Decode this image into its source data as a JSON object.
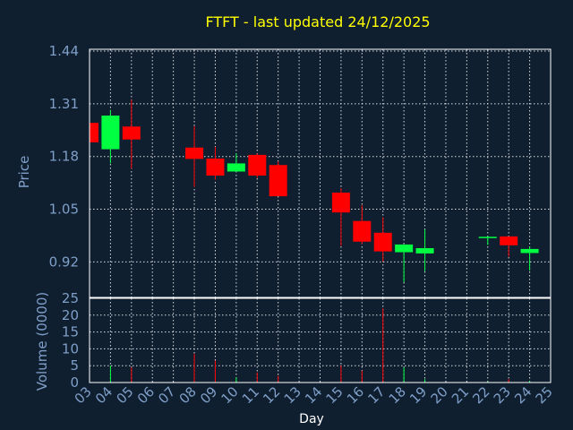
{
  "chart_data": {
    "type": "candlestick",
    "title": "FTFT - last updated 24/12/2025",
    "xlabel": "Day",
    "price_panel": {
      "ylabel": "Price",
      "yticks": [
        "1.44",
        "1.31",
        "1.18",
        "1.05",
        "0.92"
      ],
      "ylim": [
        0.8325,
        1.4445
      ]
    },
    "volume_panel": {
      "ylabel": "Volume (0000)",
      "yticks": [
        "25",
        "20",
        "15",
        "10",
        "5",
        "0"
      ],
      "ylim": [
        0,
        25
      ]
    },
    "x_ticks": [
      "03",
      "04",
      "05",
      "06",
      "07",
      "08",
      "09",
      "10",
      "11",
      "12",
      "13",
      "14",
      "15",
      "16",
      "17",
      "18",
      "19",
      "20",
      "21",
      "22",
      "23",
      "24",
      "25"
    ],
    "candles": [
      {
        "day": "03",
        "open": 1.263,
        "close": 1.215,
        "high": 1.263,
        "low": 1.215,
        "volume": 0.5
      },
      {
        "day": "04",
        "open": 1.198,
        "close": 1.281,
        "high": 1.295,
        "low": 1.163,
        "volume": 5
      },
      {
        "day": "05",
        "open": 1.254,
        "close": 1.222,
        "high": 1.32,
        "low": 1.15,
        "volume": 4.5
      },
      {
        "day": "08",
        "open": 1.202,
        "close": 1.174,
        "high": 1.255,
        "low": 1.105,
        "volume": 8.5
      },
      {
        "day": "09",
        "open": 1.175,
        "close": 1.133,
        "high": 1.204,
        "low": 1.123,
        "volume": 6.5
      },
      {
        "day": "10",
        "open": 1.143,
        "close": 1.163,
        "high": 1.188,
        "low": 1.143,
        "volume": 1.5
      },
      {
        "day": "11",
        "open": 1.184,
        "close": 1.133,
        "high": 1.187,
        "low": 1.127,
        "volume": 3
      },
      {
        "day": "12",
        "open": 1.159,
        "close": 1.082,
        "high": 1.168,
        "low": 1.082,
        "volume": 2
      },
      {
        "day": "15",
        "open": 1.091,
        "close": 1.042,
        "high": 1.102,
        "low": 0.96,
        "volume": 5
      },
      {
        "day": "16",
        "open": 1.021,
        "close": 0.97,
        "high": 1.06,
        "low": 0.964,
        "volume": 3.5
      },
      {
        "day": "17",
        "open": 0.992,
        "close": 0.946,
        "high": 1.03,
        "low": 0.921,
        "volume": 22
      },
      {
        "day": "18",
        "open": 0.944,
        "close": 0.963,
        "high": 0.963,
        "low": 0.87,
        "volume": 4.5
      },
      {
        "day": "19",
        "open": 0.941,
        "close": 0.954,
        "high": 1.0,
        "low": 0.897,
        "volume": 1
      },
      {
        "day": "22",
        "open": 0.979,
        "close": 0.982,
        "high": 0.983,
        "low": 0.962,
        "volume": 0.3
      },
      {
        "day": "23",
        "open": 0.983,
        "close": 0.961,
        "high": 0.983,
        "low": 0.933,
        "volume": 1
      },
      {
        "day": "24",
        "open": 0.942,
        "close": 0.952,
        "high": 0.958,
        "low": 0.899,
        "volume": 0.5
      }
    ],
    "colors": {
      "up": "#00ff40",
      "down": "#ff0000",
      "background": "#0f1f30",
      "title": "#ffff00",
      "tick": "#7f9fc8",
      "grid": "#ffffff"
    },
    "grid": true
  }
}
